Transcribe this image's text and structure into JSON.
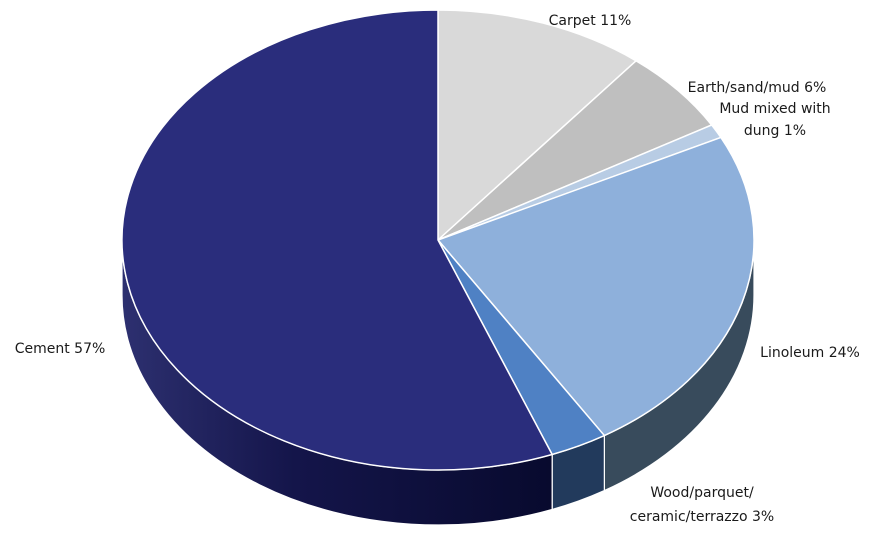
{
  "chart_data": {
    "type": "pie",
    "style": "3d",
    "slices": [
      {
        "label": "Carpet 11%",
        "value": 11,
        "color": "#d9d9d9",
        "side_color": "#a6a6a6"
      },
      {
        "label": "Earth/sand/mud 6%",
        "value": 6,
        "color": "#bfbfbf",
        "side_color": "#8c8c8c"
      },
      {
        "label": "Mud mixed with dung 1%",
        "label_lines": [
          "Mud mixed with",
          "dung 1%"
        ],
        "value": 1,
        "color": "#b8cce4",
        "side_color": "#7f93ab"
      },
      {
        "label": "Linoleum 24%",
        "value": 24,
        "color": "#8eb0db",
        "side_color": "#384b5c"
      },
      {
        "label": "Wood/parquet/ceramic/terrazzo 3%",
        "label_lines": [
          "Wood/parquet/",
          "ceramic/terrazzo 3%"
        ],
        "value": 3,
        "color": "#4f81c4",
        "side_color": "#223a5c"
      },
      {
        "label": "Cement 57%",
        "value": 57,
        "color": "#2a2d7c",
        "side_color": "#141642"
      }
    ],
    "legend": "none"
  }
}
